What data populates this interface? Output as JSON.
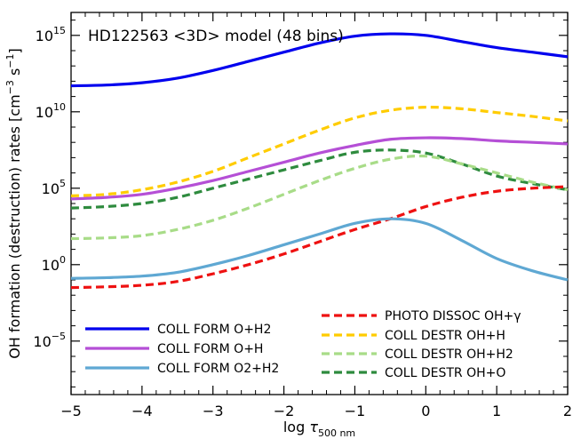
{
  "chart_data": {
    "type": "line",
    "title": "HD122563 <3D> model (48 bins)",
    "xlabel": {
      "prefix": "log ",
      "tau": "τ",
      "sub": "500 nm"
    },
    "ylabel": {
      "main": "OH formation (destruction) rates [cm",
      "exp1": "−3",
      "mid": " s",
      "exp2": "−1",
      "end": "]"
    },
    "x_range": [
      -5,
      2
    ],
    "y_range_log10": [
      -8.5,
      16.5
    ],
    "y_scale": "log",
    "x_ticks": [
      {
        "value": -5,
        "label": "−5"
      },
      {
        "value": -4,
        "label": "−4"
      },
      {
        "value": -3,
        "label": "−3"
      },
      {
        "value": -2,
        "label": "−2"
      },
      {
        "value": -1,
        "label": "−1"
      },
      {
        "value": 0,
        "label": "0"
      },
      {
        "value": 1,
        "label": "1"
      },
      {
        "value": 2,
        "label": "2"
      }
    ],
    "y_ticks": [
      {
        "exp": 15,
        "base": "10",
        "sup": "15"
      },
      {
        "exp": 10,
        "base": "10",
        "sup": "10"
      },
      {
        "exp": 5,
        "base": "10",
        "sup": "5"
      },
      {
        "exp": 0,
        "base": "10",
        "sup": "0"
      },
      {
        "exp": -5,
        "base": "10",
        "sup": "−5"
      }
    ],
    "x": [
      -5,
      -4.5,
      -4,
      -3.5,
      -3,
      -2.5,
      -2,
      -1.5,
      -1,
      -0.5,
      0,
      0.5,
      1,
      1.5,
      2
    ],
    "series": [
      {
        "name": "COLL FORM O+H2",
        "color": "#0000ee",
        "dash": "solid",
        "log10_values": [
          11.7,
          11.75,
          11.9,
          12.2,
          12.7,
          13.3,
          13.9,
          14.5,
          14.95,
          15.1,
          15.0,
          14.6,
          14.2,
          13.9,
          13.6
        ]
      },
      {
        "name": "COLL FORM O+H",
        "color": "#b54fd6",
        "dash": "solid",
        "log10_values": [
          4.3,
          4.4,
          4.6,
          5.0,
          5.5,
          6.1,
          6.7,
          7.3,
          7.8,
          8.2,
          8.3,
          8.25,
          8.1,
          8.0,
          7.9
        ]
      },
      {
        "name": "COLL FORM O2+H2",
        "color": "#5fa8d3",
        "dash": "solid",
        "log10_values": [
          -0.9,
          -0.85,
          -0.75,
          -0.5,
          0.0,
          0.6,
          1.3,
          2.0,
          2.7,
          3.0,
          2.7,
          1.6,
          0.4,
          -0.4,
          -1.0
        ]
      },
      {
        "name": "PHOTO DISSOC OH+γ",
        "color": "#ee1111",
        "dash": "dashed",
        "log10_values": [
          -1.5,
          -1.45,
          -1.35,
          -1.1,
          -0.6,
          0.0,
          0.7,
          1.5,
          2.3,
          3.0,
          3.8,
          4.4,
          4.8,
          5.0,
          5.1
        ]
      },
      {
        "name": "COLL DESTR OH+H",
        "color": "#ffcc00",
        "dash": "dashed",
        "log10_values": [
          4.5,
          4.6,
          4.9,
          5.4,
          6.1,
          7.0,
          7.9,
          8.8,
          9.6,
          10.1,
          10.3,
          10.2,
          9.95,
          9.7,
          9.4
        ]
      },
      {
        "name": "COLL DESTR OH+H2",
        "color": "#a8dc88",
        "dash": "dashed",
        "log10_values": [
          1.7,
          1.75,
          1.9,
          2.3,
          2.9,
          3.7,
          4.6,
          5.5,
          6.3,
          6.9,
          7.1,
          6.6,
          6.0,
          5.4,
          4.9
        ]
      },
      {
        "name": "COLL DESTR OH+O",
        "color": "#2e8b3e",
        "dash": "dashed",
        "log10_values": [
          3.7,
          3.8,
          4.0,
          4.4,
          5.0,
          5.6,
          6.2,
          6.8,
          7.35,
          7.5,
          7.3,
          6.6,
          5.8,
          5.3,
          4.9
        ]
      }
    ],
    "legend": {
      "left": [
        0,
        1,
        2
      ],
      "right": [
        3,
        4,
        5,
        6
      ],
      "placement": "bottom"
    },
    "grid": false
  }
}
